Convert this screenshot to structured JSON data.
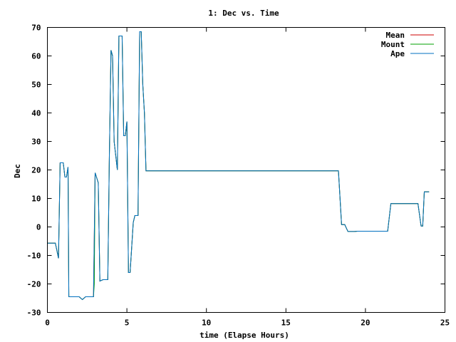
{
  "chart_data": {
    "type": "line",
    "title": "1: Dec vs. Time",
    "xlabel": "time (Elapse Hours)",
    "ylabel": "Dec",
    "xlim": [
      0,
      25
    ],
    "ylim": [
      -30,
      70
    ],
    "xticks": [
      0,
      5,
      10,
      15,
      20,
      25
    ],
    "yticks": [
      -30,
      -20,
      -10,
      0,
      10,
      20,
      30,
      40,
      50,
      60,
      70
    ],
    "grid": false,
    "legend_position": "top-right",
    "series": [
      {
        "name": "Mean",
        "color": "#cc0000",
        "points": [
          [
            0,
            -5.7
          ],
          [
            0.5,
            -5.7
          ],
          [
            0.7,
            -11
          ],
          [
            0.8,
            22.5
          ],
          [
            1.0,
            22.5
          ],
          [
            1.1,
            17.5
          ],
          [
            1.2,
            17.5
          ],
          [
            1.3,
            21
          ],
          [
            1.35,
            -24.5
          ],
          [
            2.0,
            -24.5
          ],
          [
            2.2,
            -25.5
          ],
          [
            2.4,
            -24.5
          ],
          [
            2.9,
            -24.5
          ],
          [
            3.0,
            19
          ],
          [
            3.2,
            15.5
          ],
          [
            3.3,
            -19
          ],
          [
            3.5,
            -18.5
          ],
          [
            3.8,
            -18.5
          ],
          [
            3.9,
            25
          ],
          [
            4.0,
            62
          ],
          [
            4.1,
            60
          ],
          [
            4.2,
            30
          ],
          [
            4.4,
            20
          ],
          [
            4.5,
            67
          ],
          [
            4.7,
            67
          ],
          [
            4.8,
            32
          ],
          [
            4.9,
            32
          ],
          [
            5.0,
            37
          ],
          [
            5.1,
            -16
          ],
          [
            5.2,
            -16
          ],
          [
            5.4,
            1.5
          ],
          [
            5.5,
            4
          ],
          [
            5.7,
            4
          ],
          [
            5.8,
            68.5
          ],
          [
            5.9,
            68.5
          ],
          [
            6.0,
            50
          ],
          [
            6.1,
            40
          ],
          [
            6.2,
            19.7
          ],
          [
            18.3,
            19.7
          ],
          [
            18.5,
            0.8
          ],
          [
            18.7,
            0.8
          ],
          [
            18.9,
            -1.6
          ],
          [
            19.3,
            -1.6
          ],
          [
            19.5,
            -1.5
          ],
          [
            21.4,
            -1.5
          ],
          [
            21.6,
            8.2
          ],
          [
            23.3,
            8.2
          ],
          [
            23.5,
            0.3
          ],
          [
            23.6,
            0.3
          ],
          [
            23.7,
            12.3
          ],
          [
            24.0,
            12.3
          ]
        ]
      },
      {
        "name": "Mount",
        "color": "#00a000",
        "points": [
          [
            0,
            -5.7
          ],
          [
            0.5,
            -5.7
          ],
          [
            0.7,
            -11
          ],
          [
            0.8,
            22.5
          ],
          [
            1.0,
            22.5
          ],
          [
            1.1,
            17.5
          ],
          [
            1.2,
            17.5
          ],
          [
            1.3,
            21
          ],
          [
            1.35,
            -24.5
          ],
          [
            2.0,
            -24.5
          ],
          [
            2.2,
            -25.5
          ],
          [
            2.4,
            -24.5
          ],
          [
            2.9,
            -24.5
          ],
          [
            2.95,
            -20
          ],
          [
            3.0,
            19
          ],
          [
            3.2,
            15.5
          ],
          [
            3.3,
            -19
          ],
          [
            3.5,
            -18.5
          ],
          [
            3.8,
            -18.5
          ],
          [
            3.9,
            25
          ],
          [
            4.0,
            62
          ],
          [
            4.1,
            60
          ],
          [
            4.2,
            30
          ],
          [
            4.4,
            20
          ],
          [
            4.5,
            67
          ],
          [
            4.7,
            67
          ],
          [
            4.8,
            32
          ],
          [
            4.9,
            32
          ],
          [
            5.0,
            37
          ],
          [
            5.1,
            -16
          ],
          [
            5.2,
            -16
          ],
          [
            5.4,
            1.5
          ],
          [
            5.5,
            4
          ],
          [
            5.7,
            4
          ],
          [
            5.8,
            68.5
          ],
          [
            5.9,
            68.5
          ],
          [
            6.0,
            50
          ],
          [
            6.1,
            40
          ],
          [
            6.2,
            19.7
          ],
          [
            18.3,
            19.7
          ],
          [
            18.5,
            0.8
          ],
          [
            18.7,
            0.8
          ],
          [
            18.9,
            -1.6
          ],
          [
            19.3,
            -1.6
          ],
          [
            19.5,
            -1.5
          ],
          [
            21.4,
            -1.5
          ],
          [
            21.6,
            8.2
          ],
          [
            23.3,
            8.2
          ],
          [
            23.5,
            0.3
          ],
          [
            23.6,
            0.3
          ],
          [
            23.7,
            12.3
          ],
          [
            24.0,
            12.3
          ]
        ]
      },
      {
        "name": "Ape",
        "color": "#0070c0",
        "points": [
          [
            0,
            -5.7
          ],
          [
            0.5,
            -5.7
          ],
          [
            0.7,
            -11
          ],
          [
            0.8,
            22.5
          ],
          [
            1.0,
            22.5
          ],
          [
            1.1,
            17.5
          ],
          [
            1.2,
            17.5
          ],
          [
            1.3,
            21
          ],
          [
            1.35,
            -24.5
          ],
          [
            2.0,
            -24.5
          ],
          [
            2.2,
            -25.5
          ],
          [
            2.4,
            -24.5
          ],
          [
            2.9,
            -24.5
          ],
          [
            3.0,
            19
          ],
          [
            3.2,
            15.5
          ],
          [
            3.3,
            -19
          ],
          [
            3.5,
            -18.5
          ],
          [
            3.8,
            -18.5
          ],
          [
            3.9,
            25
          ],
          [
            4.0,
            62
          ],
          [
            4.1,
            60
          ],
          [
            4.2,
            30
          ],
          [
            4.4,
            20
          ],
          [
            4.5,
            67
          ],
          [
            4.7,
            67
          ],
          [
            4.8,
            32
          ],
          [
            4.9,
            32
          ],
          [
            5.0,
            37
          ],
          [
            5.1,
            -16
          ],
          [
            5.2,
            -16
          ],
          [
            5.4,
            1.5
          ],
          [
            5.5,
            4
          ],
          [
            5.7,
            4
          ],
          [
            5.8,
            68.5
          ],
          [
            5.9,
            68.5
          ],
          [
            6.0,
            50
          ],
          [
            6.1,
            40
          ],
          [
            6.2,
            19.7
          ],
          [
            18.3,
            19.7
          ],
          [
            18.5,
            0.8
          ],
          [
            18.7,
            0.8
          ],
          [
            18.9,
            -1.6
          ],
          [
            19.3,
            -1.6
          ],
          [
            19.5,
            -1.5
          ],
          [
            21.4,
            -1.5
          ],
          [
            21.6,
            8.2
          ],
          [
            23.3,
            8.2
          ],
          [
            23.5,
            0.3
          ],
          [
            23.6,
            0.3
          ],
          [
            23.7,
            12.3
          ],
          [
            24.0,
            12.3
          ]
        ]
      }
    ]
  }
}
